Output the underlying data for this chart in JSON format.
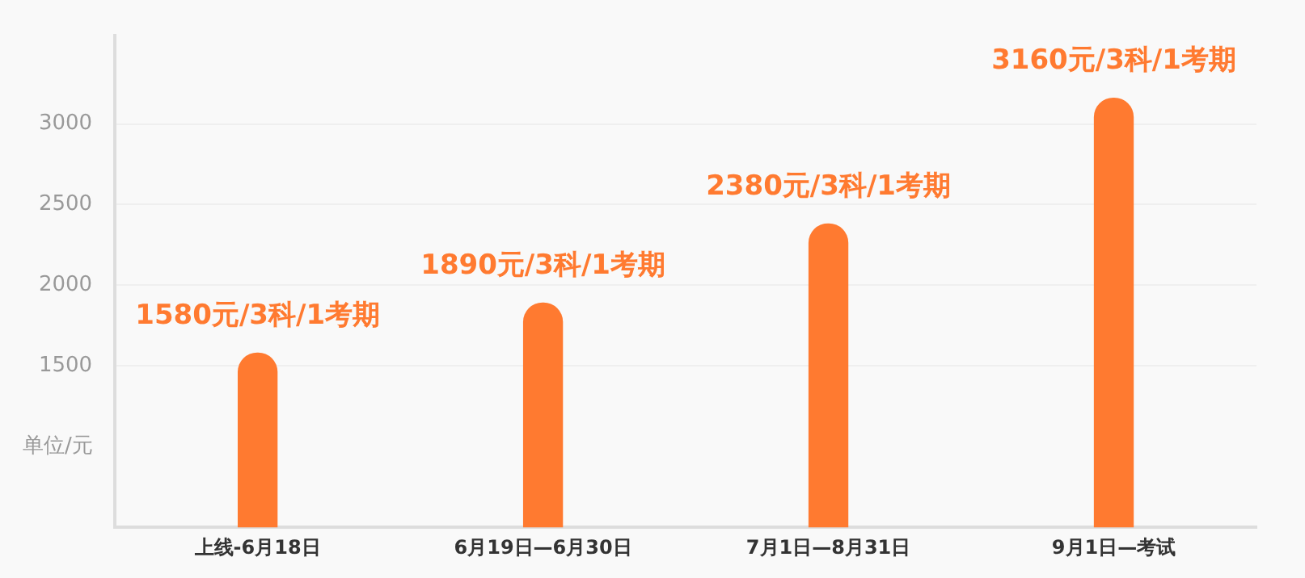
{
  "chart_data": {
    "type": "bar",
    "ylabel": "单位/元",
    "categories": [
      "上线-6月18日",
      "6月19日—6月30日",
      "7月1日—8月31日",
      "9月1日—考试"
    ],
    "values": [
      1580,
      1890,
      2380,
      3160
    ],
    "color": "#ff7a30",
    "value_labels": [
      "1580元/3科/1考期",
      "1890元/3科/1考期",
      "2380元/3科/1考期",
      "3160元/3科/1考期"
    ],
    "ylim": [
      500,
      3550
    ],
    "yticks": [
      1500,
      2000,
      2500,
      3000
    ],
    "grid": "y"
  }
}
